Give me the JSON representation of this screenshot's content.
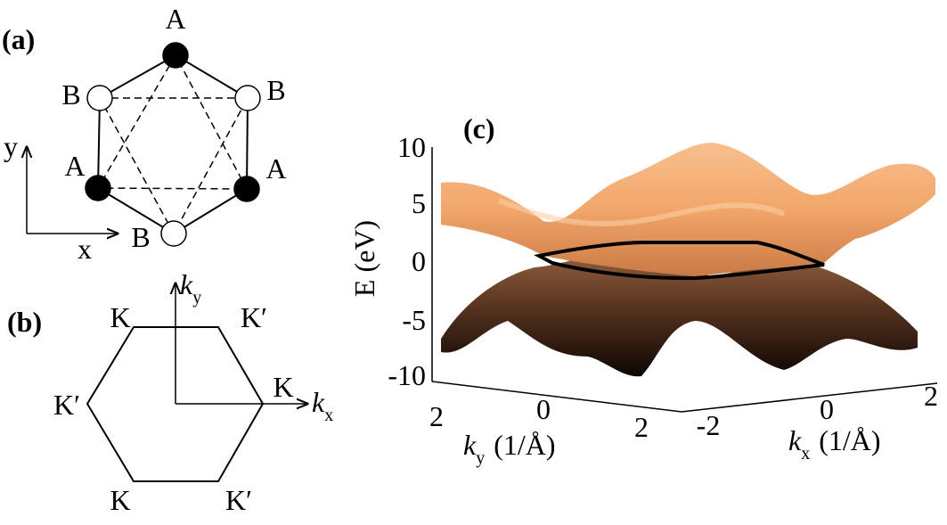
{
  "panel_a": {
    "label": "(a)",
    "sites": [
      "A",
      "B",
      "B",
      "A",
      "A",
      "B"
    ],
    "axes": {
      "y": "y",
      "x": "x"
    }
  },
  "panel_b": {
    "label": "(b)",
    "points": [
      "K",
      "K′",
      "K′",
      "K",
      "K",
      "K′"
    ],
    "ky": {
      "main": "k",
      "sub": "y"
    },
    "kx": {
      "main": "k",
      "sub": "x"
    }
  },
  "panel_c": {
    "label": "(c)",
    "energy_axis": {
      "label": "E (eV)",
      "ticks": [
        "10",
        "5",
        "0",
        "-5",
        "-10"
      ]
    },
    "ky_axis": {
      "main": "k",
      "sub": "y",
      "unit": "(1/Å)",
      "ticks": [
        "2",
        "0",
        "2"
      ]
    },
    "kx_axis": {
      "main": "k",
      "sub": "x",
      "unit": "(1/Å)",
      "ticks": [
        "-2",
        "0",
        "2"
      ]
    }
  }
}
